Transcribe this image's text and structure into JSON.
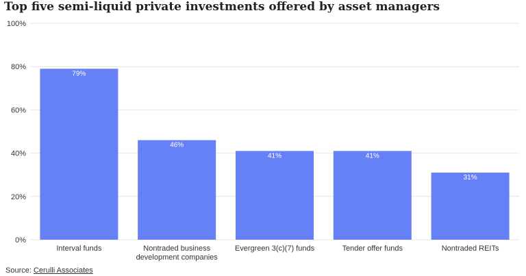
{
  "title": "Top five semi-liquid private investments offered by asset managers",
  "source": {
    "label": "Source:",
    "link_text": "Cerulli Associates"
  },
  "colors": {
    "bar": "#6680f5",
    "bar_label": "#ffffff",
    "axis_text": "#333333",
    "gridline": "#e4e4e4"
  },
  "chart_data": {
    "type": "bar",
    "categories": [
      [
        "Interval funds"
      ],
      [
        "Nontraded business",
        "development companies"
      ],
      [
        "Evergreen 3(c)(7) funds"
      ],
      [
        "Tender offer funds"
      ],
      [
        "Nontraded REITs"
      ]
    ],
    "values": [
      79,
      46,
      41,
      41,
      31
    ],
    "data_labels": [
      "79%",
      "46%",
      "41%",
      "41%",
      "31%"
    ],
    "ylim": [
      0,
      100
    ],
    "yticks": [
      0,
      20,
      40,
      60,
      80,
      100
    ],
    "ytick_labels": [
      "0%",
      "20%",
      "40%",
      "60%",
      "80%",
      "100%"
    ],
    "xlabel": "",
    "ylabel": "",
    "grid": true,
    "legend": "none"
  }
}
